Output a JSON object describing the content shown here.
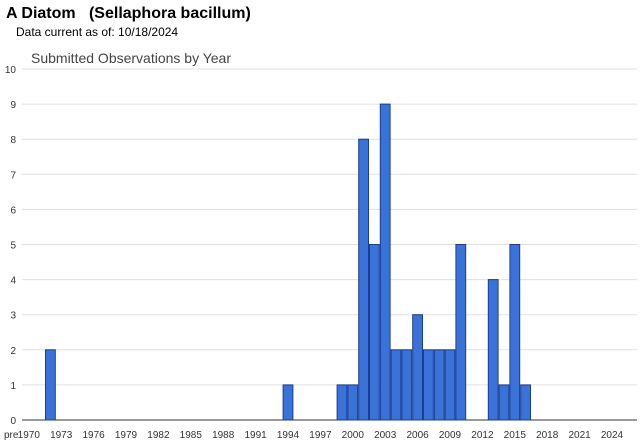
{
  "header": {
    "title": "A Diatom   (Sellaphora bacillum)",
    "data_current_label": "Data current as of: 10/18/2024"
  },
  "chart_data": {
    "type": "bar",
    "title": "Submitted Observations by Year",
    "xlabel": "",
    "ylabel": "",
    "ylim": [
      0,
      10
    ],
    "y_ticks": [
      0,
      1,
      2,
      3,
      4,
      5,
      6,
      7,
      8,
      9,
      10
    ],
    "grid": true,
    "categories": [
      "pre 1970",
      "1970",
      "1971",
      "1972",
      "1973",
      "1974",
      "1975",
      "1976",
      "1977",
      "1978",
      "1979",
      "1980",
      "1981",
      "1982",
      "1983",
      "1984",
      "1985",
      "1986",
      "1987",
      "1988",
      "1989",
      "1990",
      "1991",
      "1992",
      "1993",
      "1994",
      "1995",
      "1996",
      "1997",
      "1998",
      "1999",
      "2000",
      "2001",
      "2002",
      "2003",
      "2004",
      "2005",
      "2006",
      "2007",
      "2008",
      "2009",
      "2010",
      "2011",
      "2012",
      "2013",
      "2014",
      "2015",
      "2016",
      "2017",
      "2018",
      "2019",
      "2020",
      "2021",
      "2022",
      "2023",
      "2024"
    ],
    "tick_labels": [
      "pre",
      "1970",
      "1973",
      "1976",
      "1979",
      "1982",
      "1985",
      "1988",
      "1991",
      "1994",
      "1997",
      "2000",
      "2003",
      "2006",
      "2009",
      "2012",
      "2015",
      "2018",
      "2021",
      "2024"
    ],
    "values": [
      0,
      0,
      0,
      2,
      0,
      0,
      0,
      0,
      0,
      0,
      0,
      0,
      0,
      0,
      0,
      0,
      0,
      0,
      0,
      0,
      0,
      0,
      0,
      0,
      0,
      1,
      0,
      0,
      0,
      0,
      1,
      1,
      8,
      5,
      9,
      2,
      2,
      3,
      2,
      2,
      2,
      5,
      0,
      0,
      4,
      1,
      5,
      1,
      0,
      0,
      0,
      0,
      0,
      0,
      0,
      0
    ],
    "bar_color": "#3a72d8",
    "bar_border_color": "#1a3f8f",
    "grid_color": "#e0e0e0"
  }
}
